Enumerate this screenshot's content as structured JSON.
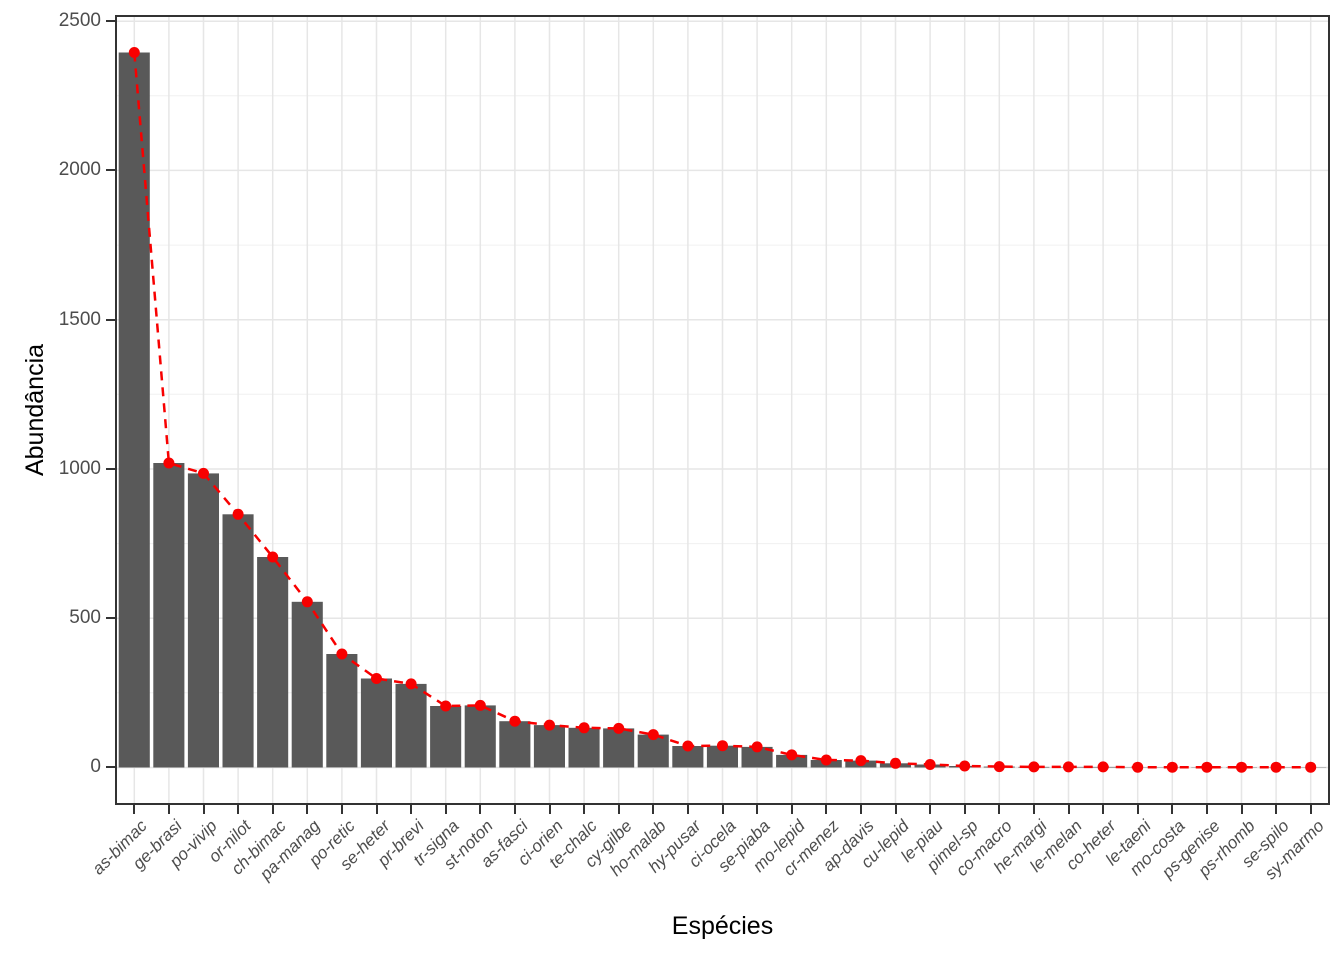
{
  "chart_data": {
    "type": "bar",
    "title": "",
    "xlabel": "Espécies",
    "ylabel": "Abundância",
    "legend": "none",
    "grid": "on",
    "overlay": "dashed line with points tracing bar heights",
    "categories": [
      "as-bimac",
      "ge-brasi",
      "po-vivip",
      "or-nilot",
      "ch-bimac",
      "pa-manag",
      "po-retic",
      "se-heter",
      "pr-brevi",
      "tr-signa",
      "st-noton",
      "as-fasci",
      "ci-orien",
      "te-chalc",
      "cy-gilbe",
      "ho-malab",
      "hy-pusar",
      "ci-ocela",
      "se-piaba",
      "mo-lepid",
      "cr-menez",
      "ap-davis",
      "cu-lepid",
      "le-piau",
      "pimel-sp",
      "co-macro",
      "he-margi",
      "le-melan",
      "co-heter",
      "le-taeni",
      "mo-costa",
      "ps-genise",
      "ps-rhomb",
      "se-spilo",
      "sy-marmo"
    ],
    "values": [
      2395,
      1020,
      985,
      848,
      705,
      555,
      380,
      298,
      280,
      206,
      208,
      155,
      142,
      133,
      131,
      110,
      72,
      73,
      69,
      42,
      25,
      23,
      14,
      10,
      5,
      3,
      2,
      2,
      2,
      1,
      1,
      1,
      1,
      1,
      1
    ],
    "y_ticks": [
      0,
      500,
      1000,
      1500,
      2000,
      2500
    ],
    "y_minor_ticks": [
      250,
      750,
      1250,
      1750,
      2250
    ],
    "ylim": [
      -119,
      2514
    ],
    "colors": {
      "bar": "#595959",
      "line": "#f80000",
      "point": "#f80000",
      "grid_major": "#e6e6e6",
      "grid_minor": "#f0f0f0",
      "axis_text": "#4d4d4d",
      "axis_title": "#000000",
      "panel_border": "#333333"
    }
  }
}
